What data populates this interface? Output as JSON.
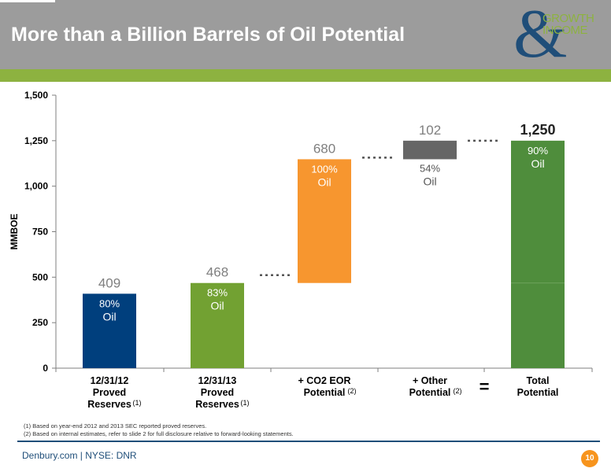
{
  "header": {
    "title": "More than a Billion Barrels of Oil Potential"
  },
  "logo": {
    "symbol": "&",
    "line1": "GROWTH",
    "line2": "INCOME"
  },
  "colors": {
    "header_gray": "#9c9c9c",
    "accent_green": "#8db240",
    "navy": "#003f7d",
    "green": "#72a132",
    "orange": "#f7962f",
    "gray_bar": "#666666",
    "total_green": "#4f8d3c"
  },
  "chart_data": {
    "type": "bar",
    "subtype": "waterfall",
    "ylabel": "MMBOE",
    "ylim": [
      0,
      1500
    ],
    "yticks": [
      "0",
      "250",
      "500",
      "750",
      "1,000",
      "1,250",
      "1,500"
    ],
    "grid": false,
    "bars": [
      {
        "label_lines": [
          "12/31/12",
          "Proved",
          "Reserves"
        ],
        "footnote": "(1)",
        "base": 0,
        "value": 409,
        "top": 409,
        "value_label": "409",
        "oil_pct": "80%",
        "oil_word": "Oil",
        "color": "#003f7d"
      },
      {
        "label_lines": [
          "12/31/13",
          "Proved",
          "Reserves"
        ],
        "footnote": "(1)",
        "base": 0,
        "value": 468,
        "top": 468,
        "value_label": "468",
        "oil_pct": "83%",
        "oil_word": "Oil",
        "color": "#72a132"
      },
      {
        "label_lines": [
          "+ CO2 EOR",
          "Potential"
        ],
        "footnote": "(2)",
        "base": 468,
        "value": 680,
        "top": 1148,
        "value_label": "680",
        "oil_pct": "100%",
        "oil_word": "Oil",
        "color": "#f7962f"
      },
      {
        "label_lines": [
          "+ Other",
          "Potential"
        ],
        "footnote": "(2)",
        "base": 1148,
        "value": 102,
        "top": 1250,
        "value_label": "102",
        "oil_pct": "54%",
        "oil_word": "Oil",
        "color": "#666666"
      },
      {
        "label_lines": [
          "Total",
          "Potential"
        ],
        "footnote": "",
        "base": 0,
        "value": 1250,
        "top": 1250,
        "value_label": "1,250",
        "oil_pct": "90%",
        "oil_word": "Oil",
        "color": "#4f8d3c"
      }
    ],
    "equals_sign": "="
  },
  "footnotes": [
    "(1)    Based on year-end 2012 and 2013 SEC reported proved reserves.",
    "(2)    Based on internal estimates, refer to slide 2 for full disclosure relative to forward-looking statements."
  ],
  "footer": {
    "text": "Denbury.com | NYSE: DNR",
    "page": "10"
  }
}
